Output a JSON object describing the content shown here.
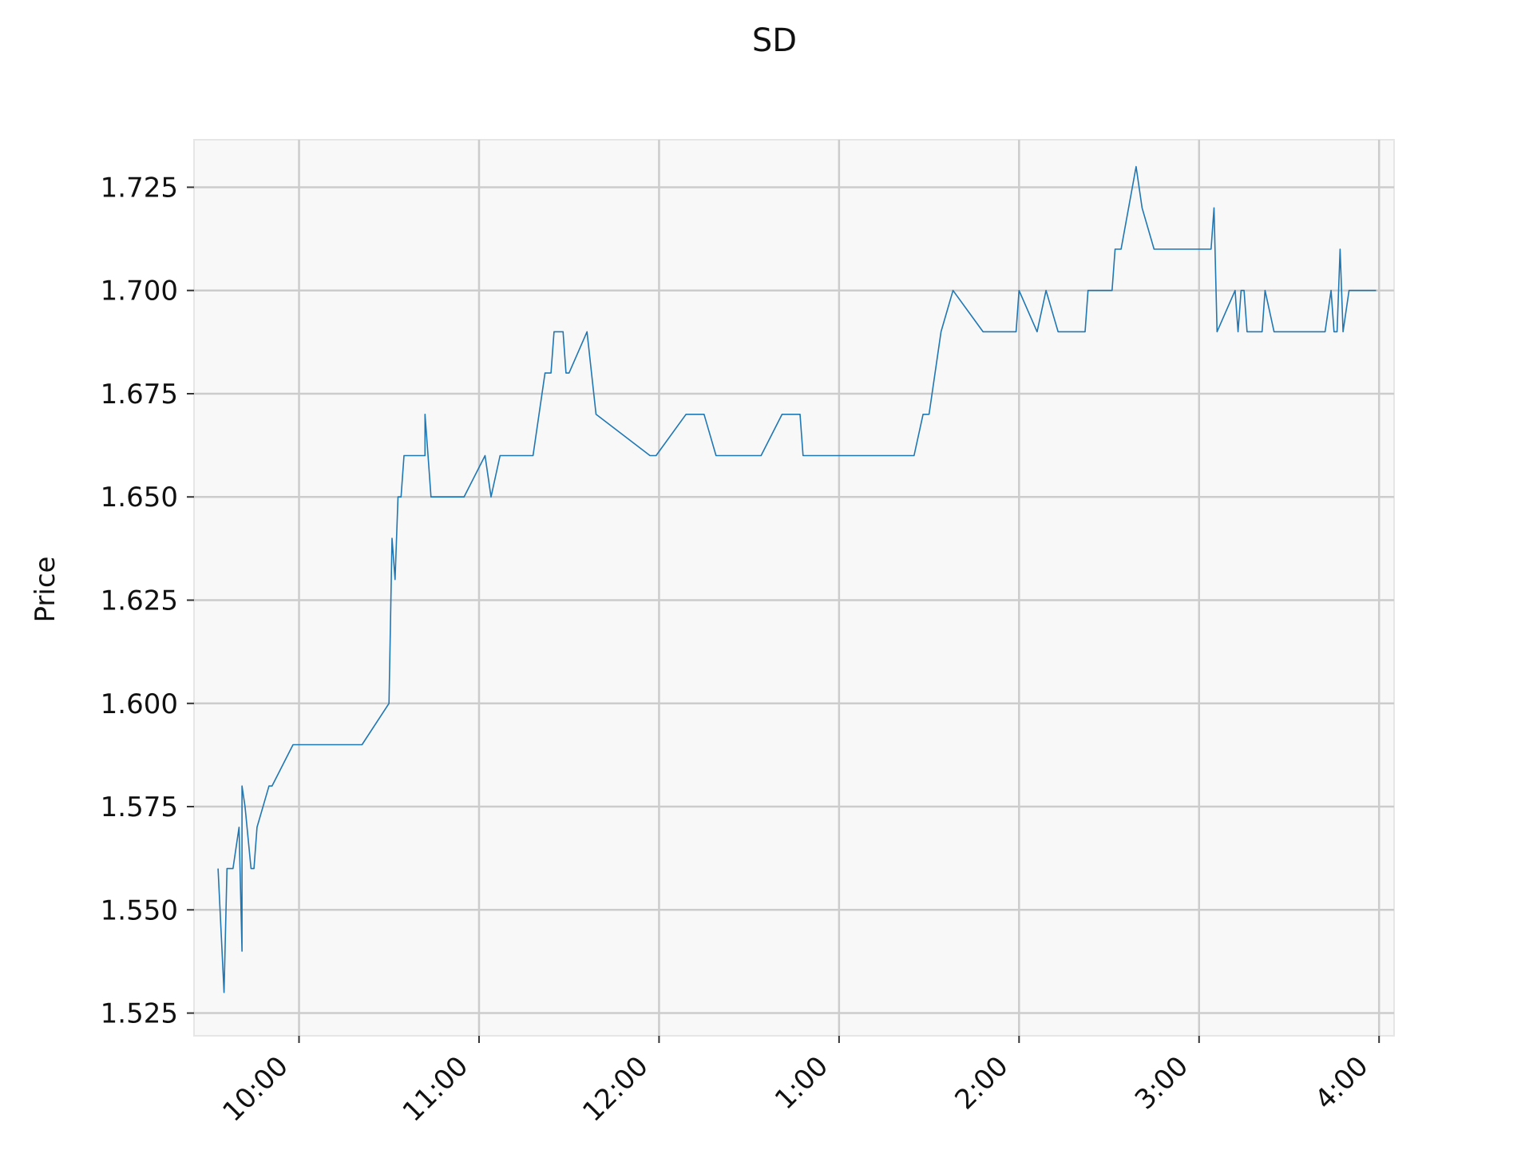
{
  "chart_data": {
    "type": "line",
    "title": "SD",
    "xlabel": "",
    "ylabel": "Price",
    "x_tick_labels": [
      "10:00",
      "11:00",
      "12:00",
      "1:00",
      "2:00",
      "3:00",
      "4:00"
    ],
    "y_tick_labels": [
      "1.525",
      "1.550",
      "1.575",
      "1.600",
      "1.625",
      "1.650",
      "1.675",
      "1.700",
      "1.725"
    ],
    "y_ticks": [
      1.525,
      1.55,
      1.575,
      1.6,
      1.625,
      1.65,
      1.675,
      1.7,
      1.725
    ],
    "ylim": [
      1.5195,
      1.7365
    ],
    "xlim": [
      "09:25",
      "16:05"
    ],
    "grid": true,
    "colors": {
      "line": "#1f77b4",
      "plot_bg": "#f8f8f8",
      "grid": "#cccccc",
      "frame": "#e6e6e6"
    },
    "series": [
      {
        "x": [
          "09:33",
          "09:35",
          "09:36",
          "09:37",
          "09:38",
          "09:40",
          "09:41",
          "09:41",
          "09:42",
          "09:44",
          "09:45",
          "09:46",
          "09:50",
          "09:51",
          "09:58",
          "10:21",
          "10:30",
          "10:31",
          "10:32",
          "10:33",
          "10:34",
          "10:35",
          "10:36",
          "10:37",
          "10:42",
          "10:42",
          "10:43",
          "10:44",
          "10:55",
          "11:02",
          "11:04",
          "11:07",
          "11:18",
          "11:22",
          "11:24",
          "11:25",
          "11:28",
          "11:29",
          "11:30",
          "11:36",
          "11:39",
          "11:57",
          "11:59",
          "12:09",
          "12:15",
          "12:19",
          "12:34",
          "12:41",
          "12:47",
          "12:48",
          "13:25",
          "13:28",
          "13:30",
          "13:34",
          "13:38",
          "13:48",
          "13:59",
          "14:00",
          "14:06",
          "14:09",
          "14:13",
          "14:22",
          "14:23",
          "14:31",
          "14:32",
          "14:34",
          "14:39",
          "14:41",
          "14:45",
          "14:46",
          "14:52",
          "15:04",
          "15:05",
          "15:06",
          "15:12",
          "15:13",
          "15:14",
          "15:15",
          "15:16",
          "15:21",
          "15:22",
          "15:25",
          "15:42",
          "15:44",
          "15:45",
          "15:46",
          "15:47",
          "15:48",
          "15:50",
          "15:59"
        ],
        "y": [
          1.56,
          1.53,
          1.56,
          1.56,
          1.56,
          1.57,
          1.54,
          1.58,
          1.575,
          1.56,
          1.56,
          1.57,
          1.58,
          1.58,
          1.59,
          1.59,
          1.6,
          1.64,
          1.63,
          1.65,
          1.65,
          1.66,
          1.66,
          1.66,
          1.66,
          1.67,
          1.66,
          1.65,
          1.65,
          1.66,
          1.65,
          1.66,
          1.66,
          1.68,
          1.68,
          1.69,
          1.69,
          1.68,
          1.68,
          1.69,
          1.67,
          1.66,
          1.66,
          1.67,
          1.67,
          1.66,
          1.66,
          1.67,
          1.67,
          1.66,
          1.66,
          1.67,
          1.67,
          1.69,
          1.7,
          1.69,
          1.69,
          1.7,
          1.69,
          1.7,
          1.69,
          1.69,
          1.7,
          1.7,
          1.71,
          1.71,
          1.73,
          1.72,
          1.71,
          1.71,
          1.71,
          1.71,
          1.72,
          1.69,
          1.7,
          1.69,
          1.7,
          1.7,
          1.69,
          1.69,
          1.7,
          1.69,
          1.69,
          1.7,
          1.69,
          1.69,
          1.71,
          1.69,
          1.7,
          1.7
        ]
      }
    ]
  }
}
